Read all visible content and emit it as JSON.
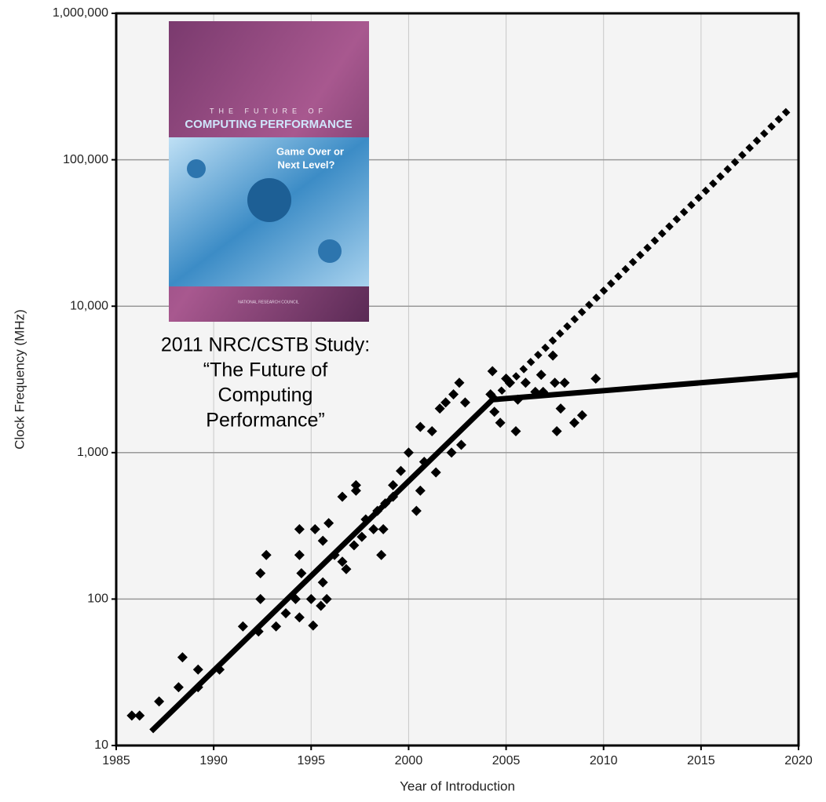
{
  "chart_data": {
    "type": "scatter",
    "x_label": "Year of Introduction",
    "y_label": "Clock Frequency (MHz)",
    "xlim": [
      1985,
      2020
    ],
    "xticks": [
      1985,
      1990,
      1995,
      2000,
      2005,
      2010,
      2015,
      2020
    ],
    "ylim": [
      10,
      1000000
    ],
    "yticks": [
      10,
      100,
      {
        "value": 1000,
        "label": "1,000"
      },
      {
        "value": 10000,
        "label": "10,000"
      },
      {
        "value": 100000,
        "label": "100,000"
      },
      {
        "value": 1000000,
        "label": "1,000,000"
      }
    ],
    "log_y": true,
    "grid": true,
    "color": "#000000",
    "x": [
      1985.8,
      1986.2,
      1987.2,
      1988.2,
      1988.4,
      1989.2,
      1989.2,
      1990.3,
      1991.5,
      1992.3,
      1992.4,
      1992.4,
      1992.7,
      1993.2,
      1993.7,
      1994.2,
      1994.4,
      1994.4,
      1994.4,
      1994.5,
      1995,
      1995.1,
      1995.2,
      1995.5,
      1995.6,
      1995.6,
      1995.8,
      1995.9,
      1996.2,
      1996.6,
      1996.6,
      1996.8,
      1997.2,
      1997.3,
      1997.3,
      1997.6,
      1997.8,
      1998.2,
      1998.4,
      1998.6,
      1998.7,
      1998.8,
      1999.2,
      1999.2,
      1999.6,
      2000,
      2000.4,
      2000.6,
      2000.6,
      2000.8,
      2001.2,
      2001.4,
      2001.6,
      2001.9,
      2002.2,
      2002.3,
      2002.6,
      2002.7,
      2002.9,
      2004.2,
      2004.3,
      2004.4,
      2004.7,
      2005,
      2005.2,
      2005.5,
      2005.6,
      2006,
      2006.5,
      2006.8,
      2006.9,
      2007.4,
      2007.5,
      2007.6,
      2007.8,
      2008,
      2008.5,
      2008.9,
      2009.6
    ],
    "values": [
      16,
      16,
      20,
      25,
      40,
      33,
      25,
      33,
      65,
      60,
      100,
      150,
      200,
      65,
      80,
      100,
      200,
      300,
      75,
      150,
      100,
      66,
      300,
      90,
      130,
      250,
      100,
      330,
      200,
      180,
      500,
      160,
      233,
      550,
      600,
      266,
      350,
      300,
      400,
      200,
      300,
      450,
      500,
      600,
      750,
      1000,
      400,
      550,
      1500,
      866,
      1400,
      733,
      2000,
      2200,
      1000,
      2500,
      3000,
      1130,
      2200,
      2500,
      3600,
      1900,
      1600,
      3200,
      3000,
      1400,
      2300,
      3000,
      2600,
      3400,
      2600,
      4600,
      3000,
      1400,
      2000,
      3000,
      1600,
      1800,
      3200
    ],
    "lines": [
      {
        "style": "solid",
        "x": [
          1986.8,
          2004.3,
          2020
        ],
        "values": [
          12.5,
          2300,
          3400
        ]
      },
      {
        "style": "dotted",
        "x": [
          2004.3,
          2019.6
        ],
        "values": [
          2300,
          227000
        ]
      }
    ],
    "annotation": [
      "2011 NRC/CSTB Study:",
      "“The Future of",
      "Computing",
      "Performance”"
    ]
  },
  "cover": {
    "kicker": "THE FUTURE OF",
    "title": "COMPUTING PERFORMANCE",
    "subtitle": [
      "Game Over or",
      "Next Level?"
    ],
    "publisher": "NATIONAL RESEARCH COUNCIL"
  }
}
